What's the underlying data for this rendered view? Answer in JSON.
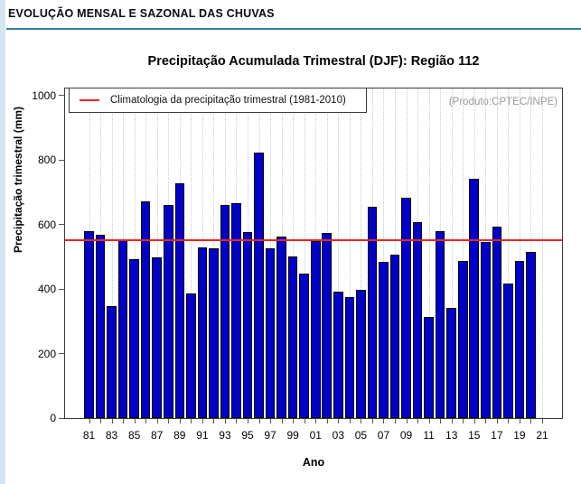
{
  "page": {
    "header": "EVOLUÇÃO MENSAL E SAZONAL DAS CHUVAS",
    "accent_color": "#337e9e",
    "left_strip_color": "#d7e4f2"
  },
  "chart_data": {
    "type": "bar",
    "title": "Precipitação Acumulada Trimestral (DJF): Região 112",
    "xlabel": "Ano",
    "ylabel": "Precipitação trimestral (mm)",
    "ylim": [
      0,
      1000
    ],
    "yticks": [
      0,
      200,
      400,
      600,
      800,
      1000
    ],
    "xtick_labels": [
      "81",
      "83",
      "85",
      "87",
      "89",
      "91",
      "93",
      "95",
      "97",
      "99",
      "01",
      "03",
      "05",
      "07",
      "09",
      "11",
      "13",
      "15",
      "17",
      "19",
      "21"
    ],
    "years": [
      1981,
      1982,
      1983,
      1984,
      1985,
      1986,
      1987,
      1988,
      1989,
      1990,
      1991,
      1992,
      1993,
      1994,
      1995,
      1996,
      1997,
      1998,
      1999,
      2000,
      2001,
      2002,
      2003,
      2004,
      2005,
      2006,
      2007,
      2008,
      2009,
      2010,
      2011,
      2012,
      2013,
      2014,
      2015,
      2016,
      2017,
      2018,
      2019,
      2020
    ],
    "values": [
      578,
      568,
      348,
      555,
      492,
      670,
      499,
      660,
      727,
      385,
      529,
      525,
      660,
      667,
      577,
      823,
      525,
      561,
      502,
      448,
      549,
      573,
      392,
      374,
      398,
      655,
      483,
      506,
      682,
      606,
      312,
      580,
      342,
      487,
      741,
      546,
      592,
      418,
      488,
      516
    ],
    "climatology_value": 551,
    "legend": "Climatologia da precipitação trimestral (1981-2010)",
    "watermark": "(Produto:CPTEC/INPE)",
    "bar_color": "#0000c8",
    "bar_border_color": "#000000",
    "line_color": "#ee2222",
    "grid": "vertical-dotted",
    "legend_position": "top-left"
  }
}
